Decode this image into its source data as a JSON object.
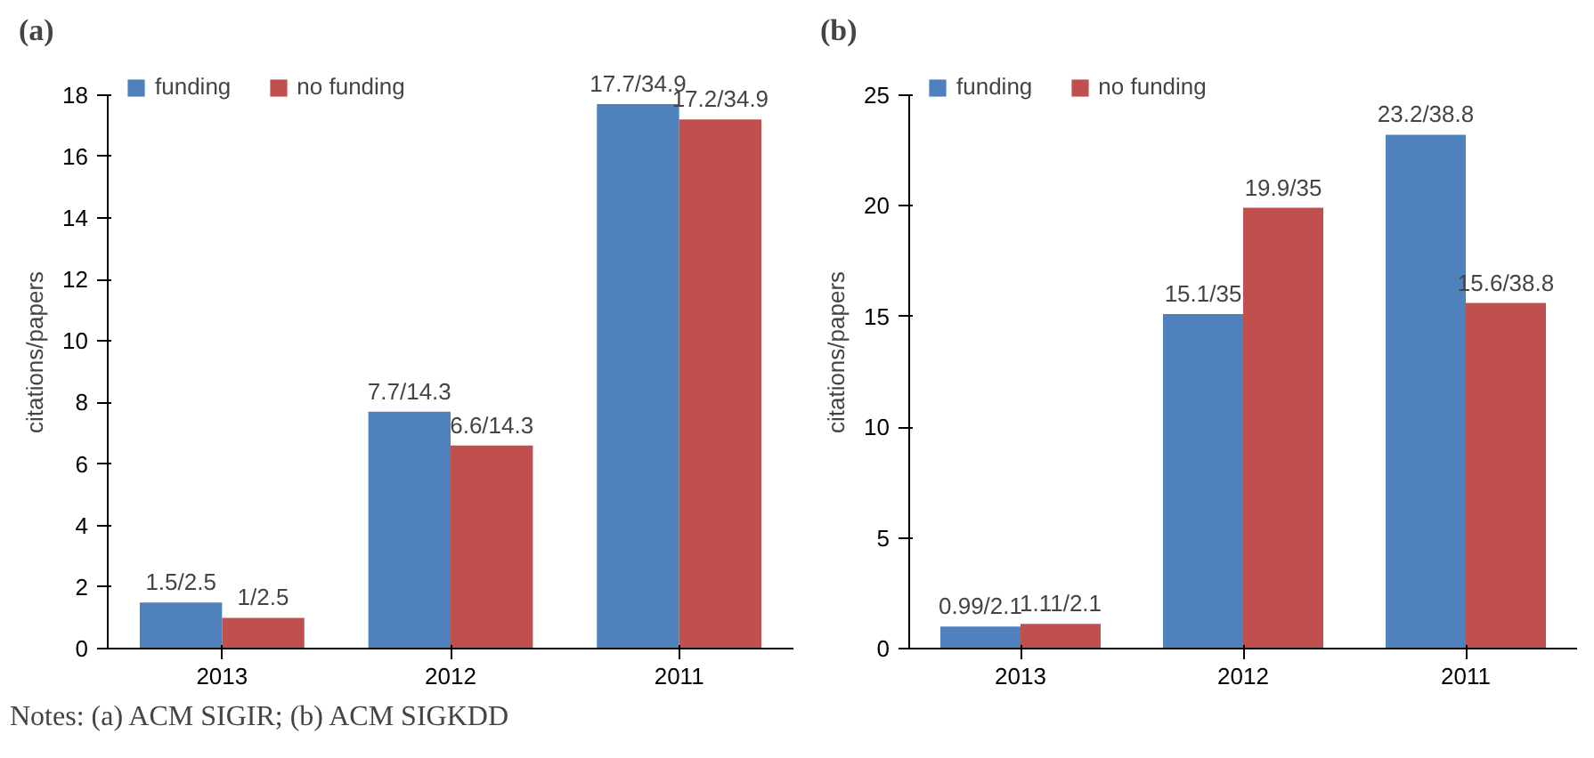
{
  "chart_data": [
    {
      "type": "bar",
      "title": "(a)",
      "ylabel": "citations/papers",
      "categories": [
        "2013",
        "2012",
        "2011"
      ],
      "ylim": [
        0,
        18
      ],
      "yticks": [
        0,
        2,
        4,
        6,
        8,
        10,
        12,
        14,
        16,
        18
      ],
      "grid": false,
      "legend": "top left",
      "series": [
        {
          "name": "funding",
          "color": "#4f81bd",
          "values": [
            1.5,
            7.7,
            17.7
          ],
          "value_labels": [
            "1.5/2.5",
            "7.7/14.3",
            "17.7/34.9"
          ]
        },
        {
          "name": "no funding",
          "color": "#c0504d",
          "values": [
            1.0,
            6.6,
            17.2
          ],
          "value_labels": [
            "1/2.5",
            "6.6/14.3",
            "17.2/34.9"
          ]
        }
      ],
      "annotations": [
        "Notes: (a) ACM SIGIR; (b) ACM SIGKDD"
      ]
    },
    {
      "type": "bar",
      "title": "(b)",
      "ylabel": "citations/papers",
      "categories": [
        "2013",
        "2012",
        "2011"
      ],
      "ylim": [
        0,
        25
      ],
      "yticks": [
        0,
        5,
        10,
        15,
        20,
        25
      ],
      "grid": false,
      "legend": "top left",
      "series": [
        {
          "name": "funding",
          "color": "#4f81bd",
          "values": [
            0.99,
            15.1,
            23.2
          ],
          "value_labels": [
            "0.99/2.1",
            "15.1/35",
            "23.2/38.8"
          ]
        },
        {
          "name": "no funding",
          "color": "#c0504d",
          "values": [
            1.11,
            19.9,
            15.6
          ],
          "value_labels": [
            "1.11/2.1",
            "19.9/35",
            "15.6/38.8"
          ]
        }
      ]
    }
  ]
}
